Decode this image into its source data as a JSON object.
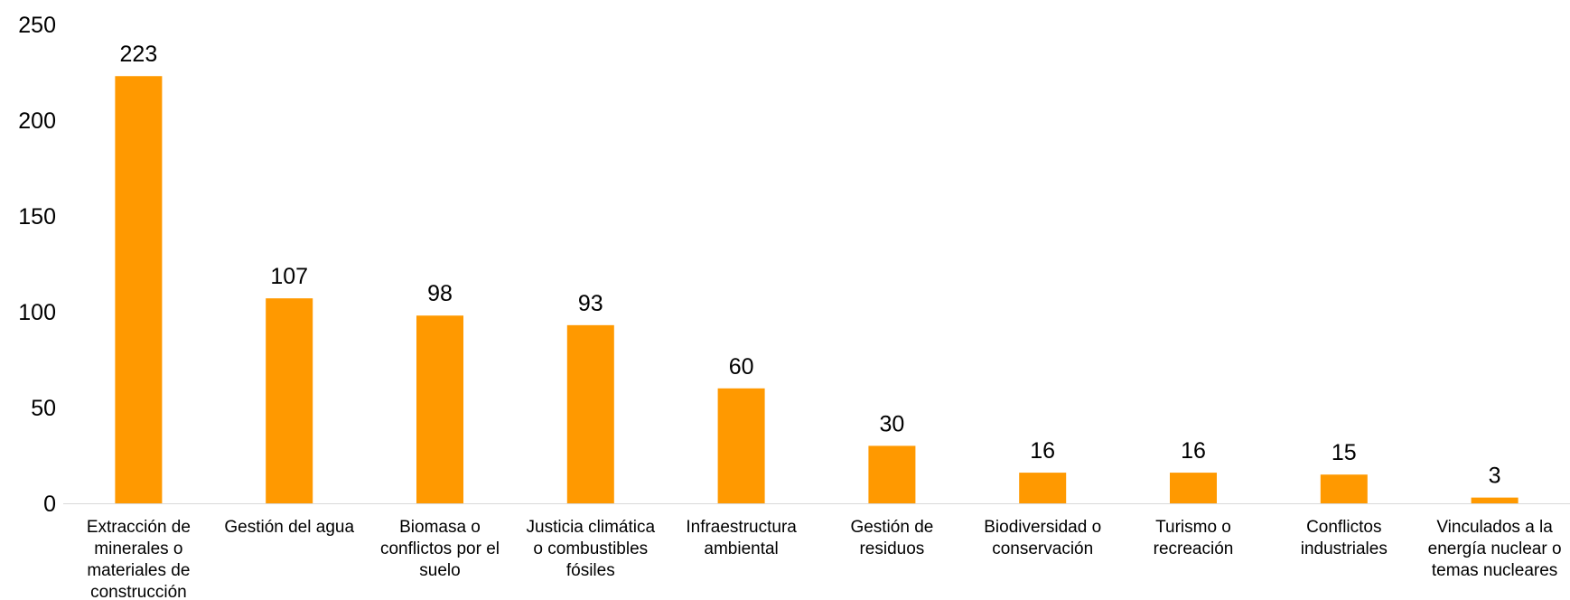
{
  "chart_data": {
    "type": "bar",
    "title": "",
    "xlabel": "",
    "ylabel": "",
    "ylim": [
      0,
      250
    ],
    "yticks": [
      0,
      50,
      100,
      150,
      200,
      250
    ],
    "grid": false,
    "legend": "none",
    "bar_color": "#FF9900",
    "categories": [
      [
        "Extracción de",
        "minerales o",
        "materiales de",
        "construcción"
      ],
      [
        "Gestión del agua"
      ],
      [
        "Biomasa o",
        "conflictos por el",
        "suelo"
      ],
      [
        "Justicia climática",
        "o combustibles",
        "fósiles"
      ],
      [
        "Infraestructura",
        "ambiental"
      ],
      [
        "Gestión de",
        "residuos"
      ],
      [
        "Biodiversidad o",
        "conservación"
      ],
      [
        "Turismo o",
        "recreación"
      ],
      [
        "Conflictos",
        "industriales"
      ],
      [
        "Vinculados a la",
        "energía nuclear o",
        "temas nucleares"
      ]
    ],
    "values": [
      223,
      107,
      98,
      93,
      60,
      30,
      16,
      16,
      15,
      3
    ]
  }
}
